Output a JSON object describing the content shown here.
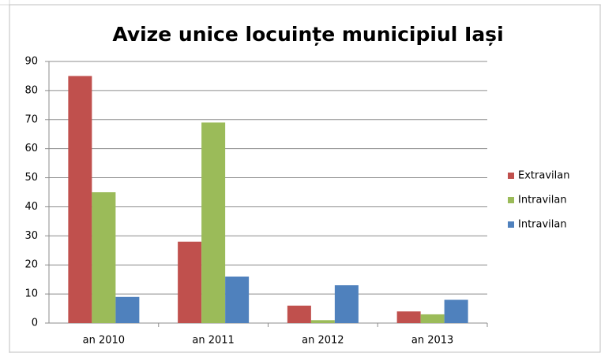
{
  "chart_data": {
    "type": "bar",
    "title": "Avize unice locuințe municipiul Iași",
    "categories": [
      "an 2010",
      "an 2011",
      "an 2012",
      "an 2013"
    ],
    "series": [
      {
        "name": "Extravilan",
        "color": "#c0504d",
        "values": [
          85,
          28,
          6,
          4
        ]
      },
      {
        "name": "Intravilan",
        "color": "#9bbb59",
        "values": [
          45,
          69,
          1,
          3
        ]
      },
      {
        "name": "Intravilan",
        "color": "#4f81bd",
        "values": [
          9,
          16,
          13,
          8
        ]
      }
    ],
    "ylim": [
      0,
      90
    ],
    "yticks": [
      0,
      10,
      20,
      30,
      40,
      50,
      60,
      70,
      80,
      90
    ],
    "grid": true,
    "legend": "right"
  }
}
